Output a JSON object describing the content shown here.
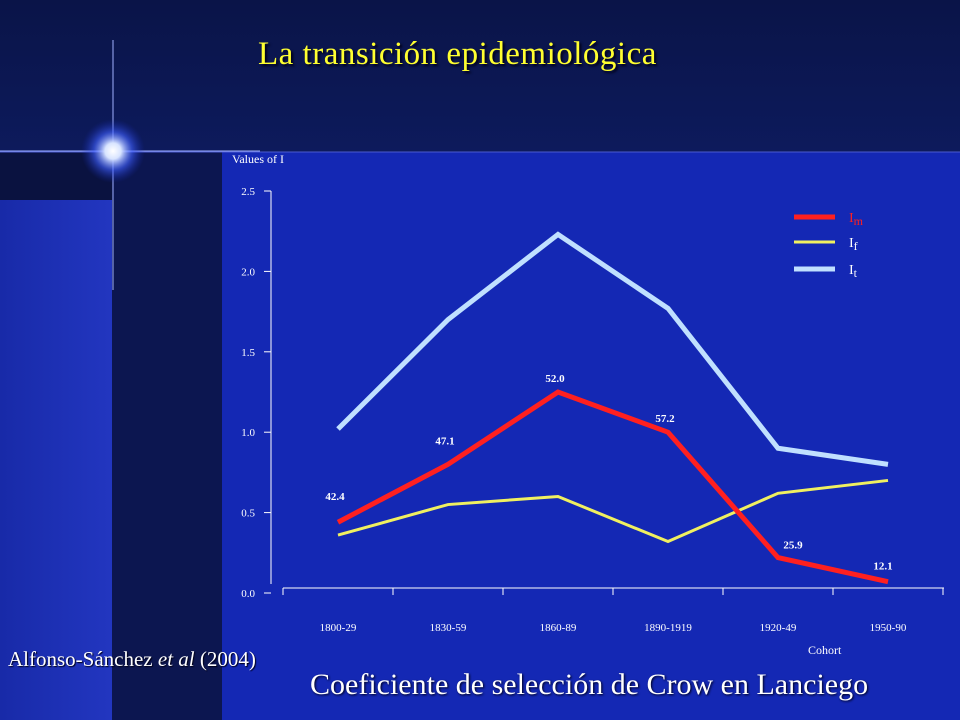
{
  "slide": {
    "title": "La transición epidemiológica",
    "citation_author": "Alfonso-Sánchez ",
    "citation_etal": "et al",
    "citation_year": " (2004)",
    "subtitle": "Coeficiente de selección de Crow en Lanciego"
  },
  "colors": {
    "background": "#1428b4",
    "title": "#ffff30",
    "Im": "#ff2020",
    "If": "#f0f060",
    "It": "#c0e0ff"
  },
  "chart_data": {
    "type": "line",
    "categories": [
      "1800-29",
      "1830-59",
      "1860-89",
      "1890-1919",
      "1920-49",
      "1950-90"
    ],
    "xlabel": "Cohort",
    "ylabel": "Values of I",
    "ylim": [
      0,
      2.5
    ],
    "yticks": [
      "0.0",
      "0.5",
      "1.0",
      "1.5",
      "2.0",
      "2.5"
    ],
    "legend_position": "top-right",
    "series": [
      {
        "name": "Im",
        "base": "I",
        "sub": "m",
        "color": "#ff2020",
        "values": [
          0.44,
          0.8,
          1.25,
          1.0,
          0.22,
          0.07
        ],
        "labels": [
          "42.4",
          "47.1",
          "52.0",
          "57.2",
          "25.9",
          "12.1"
        ]
      },
      {
        "name": "If",
        "base": "I",
        "sub": "f",
        "color": "#f0f060",
        "values": [
          0.36,
          0.55,
          0.6,
          0.32,
          0.62,
          0.7
        ]
      },
      {
        "name": "It",
        "base": "I",
        "sub": "t",
        "color": "#c0e0ff",
        "values": [
          1.02,
          1.7,
          2.23,
          1.77,
          0.9,
          0.8
        ]
      }
    ]
  }
}
